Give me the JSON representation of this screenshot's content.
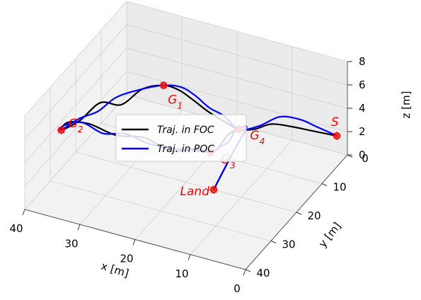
{
  "chart_data": {
    "type": "line",
    "projection": "3d",
    "title": "",
    "xlabel": "x [m]",
    "ylabel": "y [m]",
    "zlabel": "z [m]",
    "xlim": [
      0,
      40
    ],
    "ylim": [
      0,
      40
    ],
    "zlim": [
      0,
      8
    ],
    "x_ticks": [
      "0",
      "10",
      "20",
      "30",
      "40"
    ],
    "y_ticks": [
      "0",
      "10",
      "20",
      "30",
      "40"
    ],
    "z_ticks": [
      "0",
      "2",
      "4",
      "6",
      "8"
    ],
    "grid": true,
    "legend_position": "center",
    "waypoints": [
      {
        "label": "S",
        "sub": "",
        "x": 1,
        "y": 2,
        "z": 2
      },
      {
        "label": "G",
        "sub": "4",
        "x": 16,
        "y": 8,
        "z": 2.1
      },
      {
        "label": "G",
        "sub": "1",
        "x": 31,
        "y": 5,
        "z": 3.2
      },
      {
        "label": "G",
        "sub": "2",
        "x": 38,
        "y": 30,
        "z": 4.6
      },
      {
        "label": "G",
        "sub": "3",
        "x": 10,
        "y": 32,
        "z": 6.8
      },
      {
        "label": "Land",
        "sub": "",
        "x": 15,
        "y": 20,
        "z": 0
      }
    ],
    "series": [
      {
        "name": "Traj. in FOC",
        "color": "#000000",
        "points": [
          [
            1,
            2,
            2
          ],
          [
            5,
            3.5,
            2.3
          ],
          [
            8,
            4.5,
            2.5
          ],
          [
            11,
            6,
            2.7
          ],
          [
            13.5,
            7,
            2.2
          ],
          [
            16,
            8,
            2.1
          ],
          [
            19,
            7.5,
            2.3
          ],
          [
            22,
            7,
            2.6
          ],
          [
            25,
            6.5,
            3.1
          ],
          [
            28,
            5.5,
            3.3
          ],
          [
            31,
            5,
            3.2
          ],
          [
            33,
            9,
            3.6
          ],
          [
            34.5,
            14,
            3.3
          ],
          [
            36,
            19,
            4.5
          ],
          [
            37,
            25,
            4.3
          ],
          [
            38,
            30,
            4.6
          ],
          [
            36,
            31.5,
            5.9
          ],
          [
            32,
            32,
            6.4
          ],
          [
            27,
            32.5,
            6.2
          ],
          [
            22,
            32,
            6.5
          ],
          [
            17,
            33,
            6.3
          ],
          [
            13,
            32,
            6.7
          ],
          [
            10,
            32,
            6.8
          ],
          [
            11,
            27,
            5.8
          ],
          [
            12,
            23,
            5.2
          ],
          [
            14,
            17,
            4
          ],
          [
            15,
            13,
            3.2
          ],
          [
            16,
            8,
            2.1
          ],
          [
            16,
            5,
            1.5
          ],
          [
            15.5,
            12,
            0.9
          ],
          [
            15,
            20,
            0
          ]
        ]
      },
      {
        "name": "Traj. in POC",
        "color": "#0000ff",
        "points": [
          [
            1,
            2,
            2
          ],
          [
            4,
            3,
            2.6
          ],
          [
            7,
            3.5,
            3
          ],
          [
            10,
            5,
            3.2
          ],
          [
            13,
            6.5,
            2.4
          ],
          [
            16,
            8,
            2.1
          ],
          [
            19,
            7.3,
            2.7
          ],
          [
            22,
            6.5,
            2.8
          ],
          [
            25,
            5.5,
            3.2
          ],
          [
            28,
            4.5,
            3.3
          ],
          [
            31,
            5,
            3.2
          ],
          [
            33,
            10,
            3.8
          ],
          [
            35,
            15,
            4.1
          ],
          [
            36,
            20,
            4
          ],
          [
            37,
            25,
            4.5
          ],
          [
            38,
            30,
            4.6
          ],
          [
            36.5,
            32,
            5.7
          ],
          [
            33,
            32.5,
            6.5
          ],
          [
            29,
            33,
            6.2
          ],
          [
            25,
            33,
            6.7
          ],
          [
            21,
            33,
            6.4
          ],
          [
            17,
            33,
            6.5
          ],
          [
            13,
            32.5,
            6.7
          ],
          [
            10,
            32,
            6.8
          ],
          [
            10.5,
            27,
            6
          ],
          [
            11.5,
            22,
            5
          ],
          [
            13.5,
            16,
            3.8
          ],
          [
            15,
            12,
            3
          ],
          [
            16,
            8,
            2.1
          ],
          [
            16,
            5,
            1.5
          ],
          [
            15.5,
            12,
            0.9
          ],
          [
            15,
            20,
            0
          ]
        ]
      }
    ]
  }
}
